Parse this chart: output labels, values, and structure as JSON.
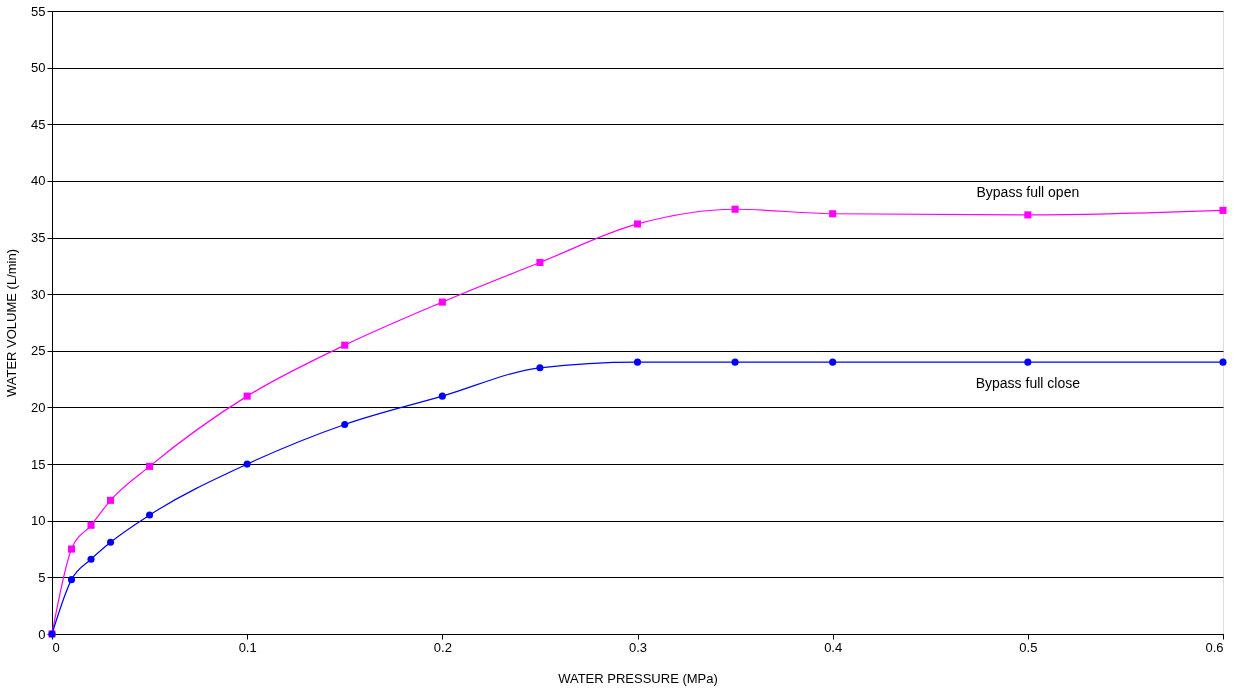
{
  "chart_data": {
    "type": "line",
    "xlabel": "WATER PRESSURE (MPa)",
    "ylabel": "WATER VOLUME (L/min)",
    "xlim": [
      0,
      0.6
    ],
    "xticks": [
      0,
      0.1,
      0.2,
      0.3,
      0.4,
      0.5,
      0.6
    ],
    "ylim": [
      0,
      55
    ],
    "yticks": [
      0,
      5,
      10,
      15,
      20,
      25,
      30,
      35,
      40,
      45,
      50,
      55
    ],
    "grid": "y",
    "line_style": "solid",
    "x": [
      0,
      0.01,
      0.02,
      0.03,
      0.05,
      0.1,
      0.15,
      0.2,
      0.25,
      0.3,
      0.35,
      0.4,
      0.5,
      0.6
    ],
    "series": [
      {
        "name": "Bypass full open",
        "color": "#ff00ff",
        "marker": "square",
        "values": [
          0,
          7.5,
          9.6,
          11.8,
          14.8,
          21.0,
          25.5,
          29.3,
          32.8,
          36.2,
          37.5,
          37.1,
          37.0,
          37.4
        ]
      },
      {
        "name": "Bypass full close",
        "color": "#0000ff",
        "marker": "circle",
        "values": [
          0,
          4.8,
          6.6,
          8.1,
          10.5,
          15.0,
          18.5,
          21.0,
          23.5,
          24.0,
          24.0,
          24.0,
          24.0,
          24.0
        ]
      }
    ]
  }
}
